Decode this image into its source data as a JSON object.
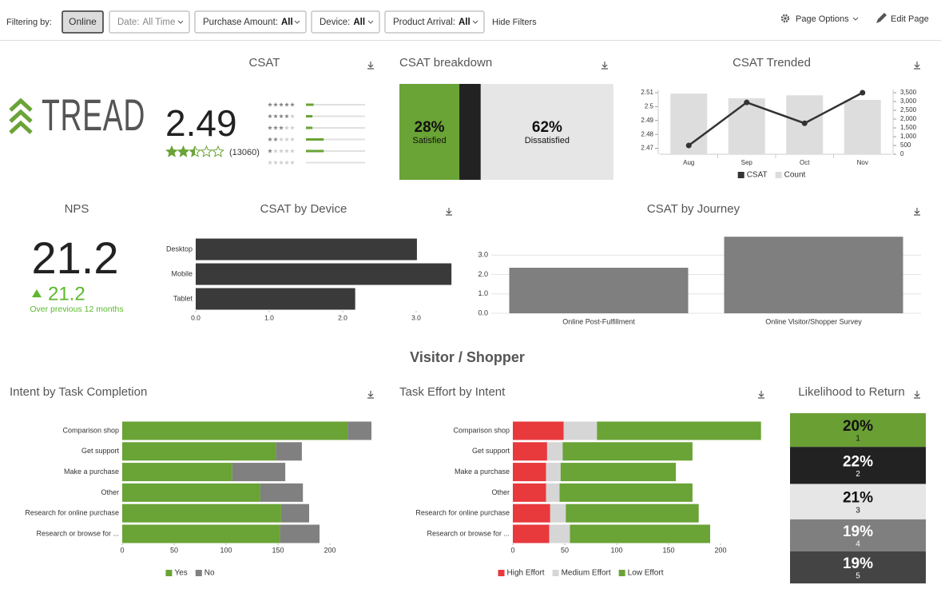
{
  "filter_bar": {
    "label": "Filtering by:",
    "active": "Online",
    "filters": [
      {
        "name": "Date:",
        "value": "All Time"
      },
      {
        "name": "Purchase Amount:",
        "value": "All"
      },
      {
        "name": "Device:",
        "value": "All"
      },
      {
        "name": "Product Arrival:",
        "value": "All"
      }
    ],
    "hide_filters": "Hide Filters",
    "page_options": "Page Options",
    "edit_page": "Edit Page"
  },
  "section_title": "Visitor / Shopper",
  "chart_data": [
    {
      "type": "rating",
      "title": "CSAT",
      "logo": "TREAD",
      "score": 2.49,
      "max_stars": 5,
      "count_label": "(13060)",
      "distribution": [
        13,
        11,
        11,
        30,
        30,
        0
      ],
      "color": "#6aa336"
    },
    {
      "type": "breakdown",
      "title": "CSAT breakdown",
      "segments": [
        {
          "label": "Satisfied",
          "value": 28,
          "value_label": "28%",
          "color": "#6aa336"
        },
        {
          "value": 10,
          "color": "#222222"
        },
        {
          "label": "Dissatisfied",
          "value": 62,
          "value_label": "62%",
          "color": "#e6e6e6"
        }
      ]
    },
    {
      "type": "combo",
      "title": "CSAT Trended",
      "categories": [
        "Aug",
        "Sep",
        "Oct",
        "Nov"
      ],
      "series": [
        {
          "name": "CSAT",
          "color": "#333333",
          "type": "line",
          "values": [
            2.472,
            2.503,
            2.488,
            2.51
          ]
        },
        {
          "name": "Count",
          "color": "#dddddd",
          "type": "bar",
          "axis": "y2",
          "values": [
            3450,
            3180,
            3350,
            3090
          ]
        }
      ],
      "ylim": [
        2.468,
        2.51
      ],
      "yticks": [
        2.47,
        2.48,
        2.49,
        2.5,
        2.51
      ],
      "y2lim": [
        0,
        3500
      ],
      "y2ticks": [
        0,
        500,
        {
          "value": 1000,
          "label": "1,000"
        },
        {
          "value": 1500,
          "label": "1,500"
        },
        {
          "value": 2000,
          "label": "2,000"
        },
        {
          "value": 2500,
          "label": "2,500"
        },
        {
          "value": 3000,
          "label": "3,000"
        },
        {
          "value": 3500,
          "label": "3,500"
        }
      ],
      "legend": "bottom"
    },
    {
      "type": "kpi",
      "title": "NPS",
      "value": 21.2,
      "change": 21.2,
      "change_note": "Over previous 12 months",
      "color": "#5cb82e"
    },
    {
      "type": "hbar",
      "title": "CSAT by Device",
      "categories": [
        "Desktop",
        "Mobile",
        "Tablet"
      ],
      "values": [
        3.01,
        3.48,
        2.17
      ],
      "color": "#3a3a3a",
      "xlim": [
        0,
        3.5
      ],
      "xticks": [
        {
          "value": 0,
          "label": "0.0"
        },
        {
          "value": 1,
          "label": "1.0"
        },
        {
          "value": 2,
          "label": "2.0"
        },
        {
          "value": 3,
          "label": "3.0"
        }
      ]
    },
    {
      "type": "bar",
      "title": "CSAT by Journey",
      "categories": [
        "Online Post-Fulfillment",
        "Online Visitor/Shopper Survey"
      ],
      "values": [
        2.35,
        3.95
      ],
      "color": "#7f7f7f",
      "ylim": [
        0,
        4
      ],
      "yticks": [
        {
          "value": 0,
          "label": "0.0"
        },
        {
          "value": 1,
          "label": "1.0"
        },
        {
          "value": 2,
          "label": "2.0"
        },
        {
          "value": 3,
          "label": "3.0"
        }
      ],
      "grid": true
    },
    {
      "type": "stacked_hbar",
      "title": "Intent by Task Completion",
      "categories": [
        "Comparison shop",
        "Get support",
        "Make a purchase",
        "Other",
        "Research for online purchase",
        "Research or browse for ..."
      ],
      "series": [
        {
          "name": "Yes",
          "color": "#6aa336",
          "values": [
            217,
            148,
            106,
            133,
            153,
            152
          ]
        },
        {
          "name": "No",
          "color": "#808080",
          "values": [
            23,
            25,
            51,
            41,
            27,
            38
          ]
        }
      ],
      "xlim": [
        0,
        240
      ],
      "xticks": [
        0,
        50,
        100,
        150,
        200
      ],
      "legend": "bottom"
    },
    {
      "type": "stacked_hbar",
      "title": "Task Effort by Intent",
      "categories": [
        "Comparison shop",
        "Get support",
        "Make a purchase",
        "Other",
        "Research for online purchase",
        "Research or browse for ..."
      ],
      "series": [
        {
          "name": "High Effort",
          "color": "#e8393d",
          "values": [
            49,
            33,
            32,
            32,
            36,
            35
          ]
        },
        {
          "name": "Medium Effort",
          "color": "#d6d6d6",
          "values": [
            32,
            15,
            14,
            13,
            15,
            20
          ]
        },
        {
          "name": "Low Effort",
          "color": "#6aa336",
          "values": [
            158,
            125,
            111,
            128,
            128,
            135
          ]
        }
      ],
      "xlim": [
        0,
        240
      ],
      "xticks": [
        0,
        50,
        100,
        150,
        200
      ],
      "legend": "bottom"
    },
    {
      "type": "boxes",
      "title": "Likelihood to Return",
      "categories": [
        "1",
        "2",
        "3",
        "4",
        "5"
      ],
      "values": [
        20,
        22,
        21,
        19,
        19
      ],
      "value_labels": [
        "20%",
        "22%",
        "21%",
        "19%",
        "19%"
      ],
      "colors": [
        "#6a9f34",
        "#222222",
        "#e6e6e6",
        "#7f7f7f",
        "#444444"
      ]
    }
  ]
}
